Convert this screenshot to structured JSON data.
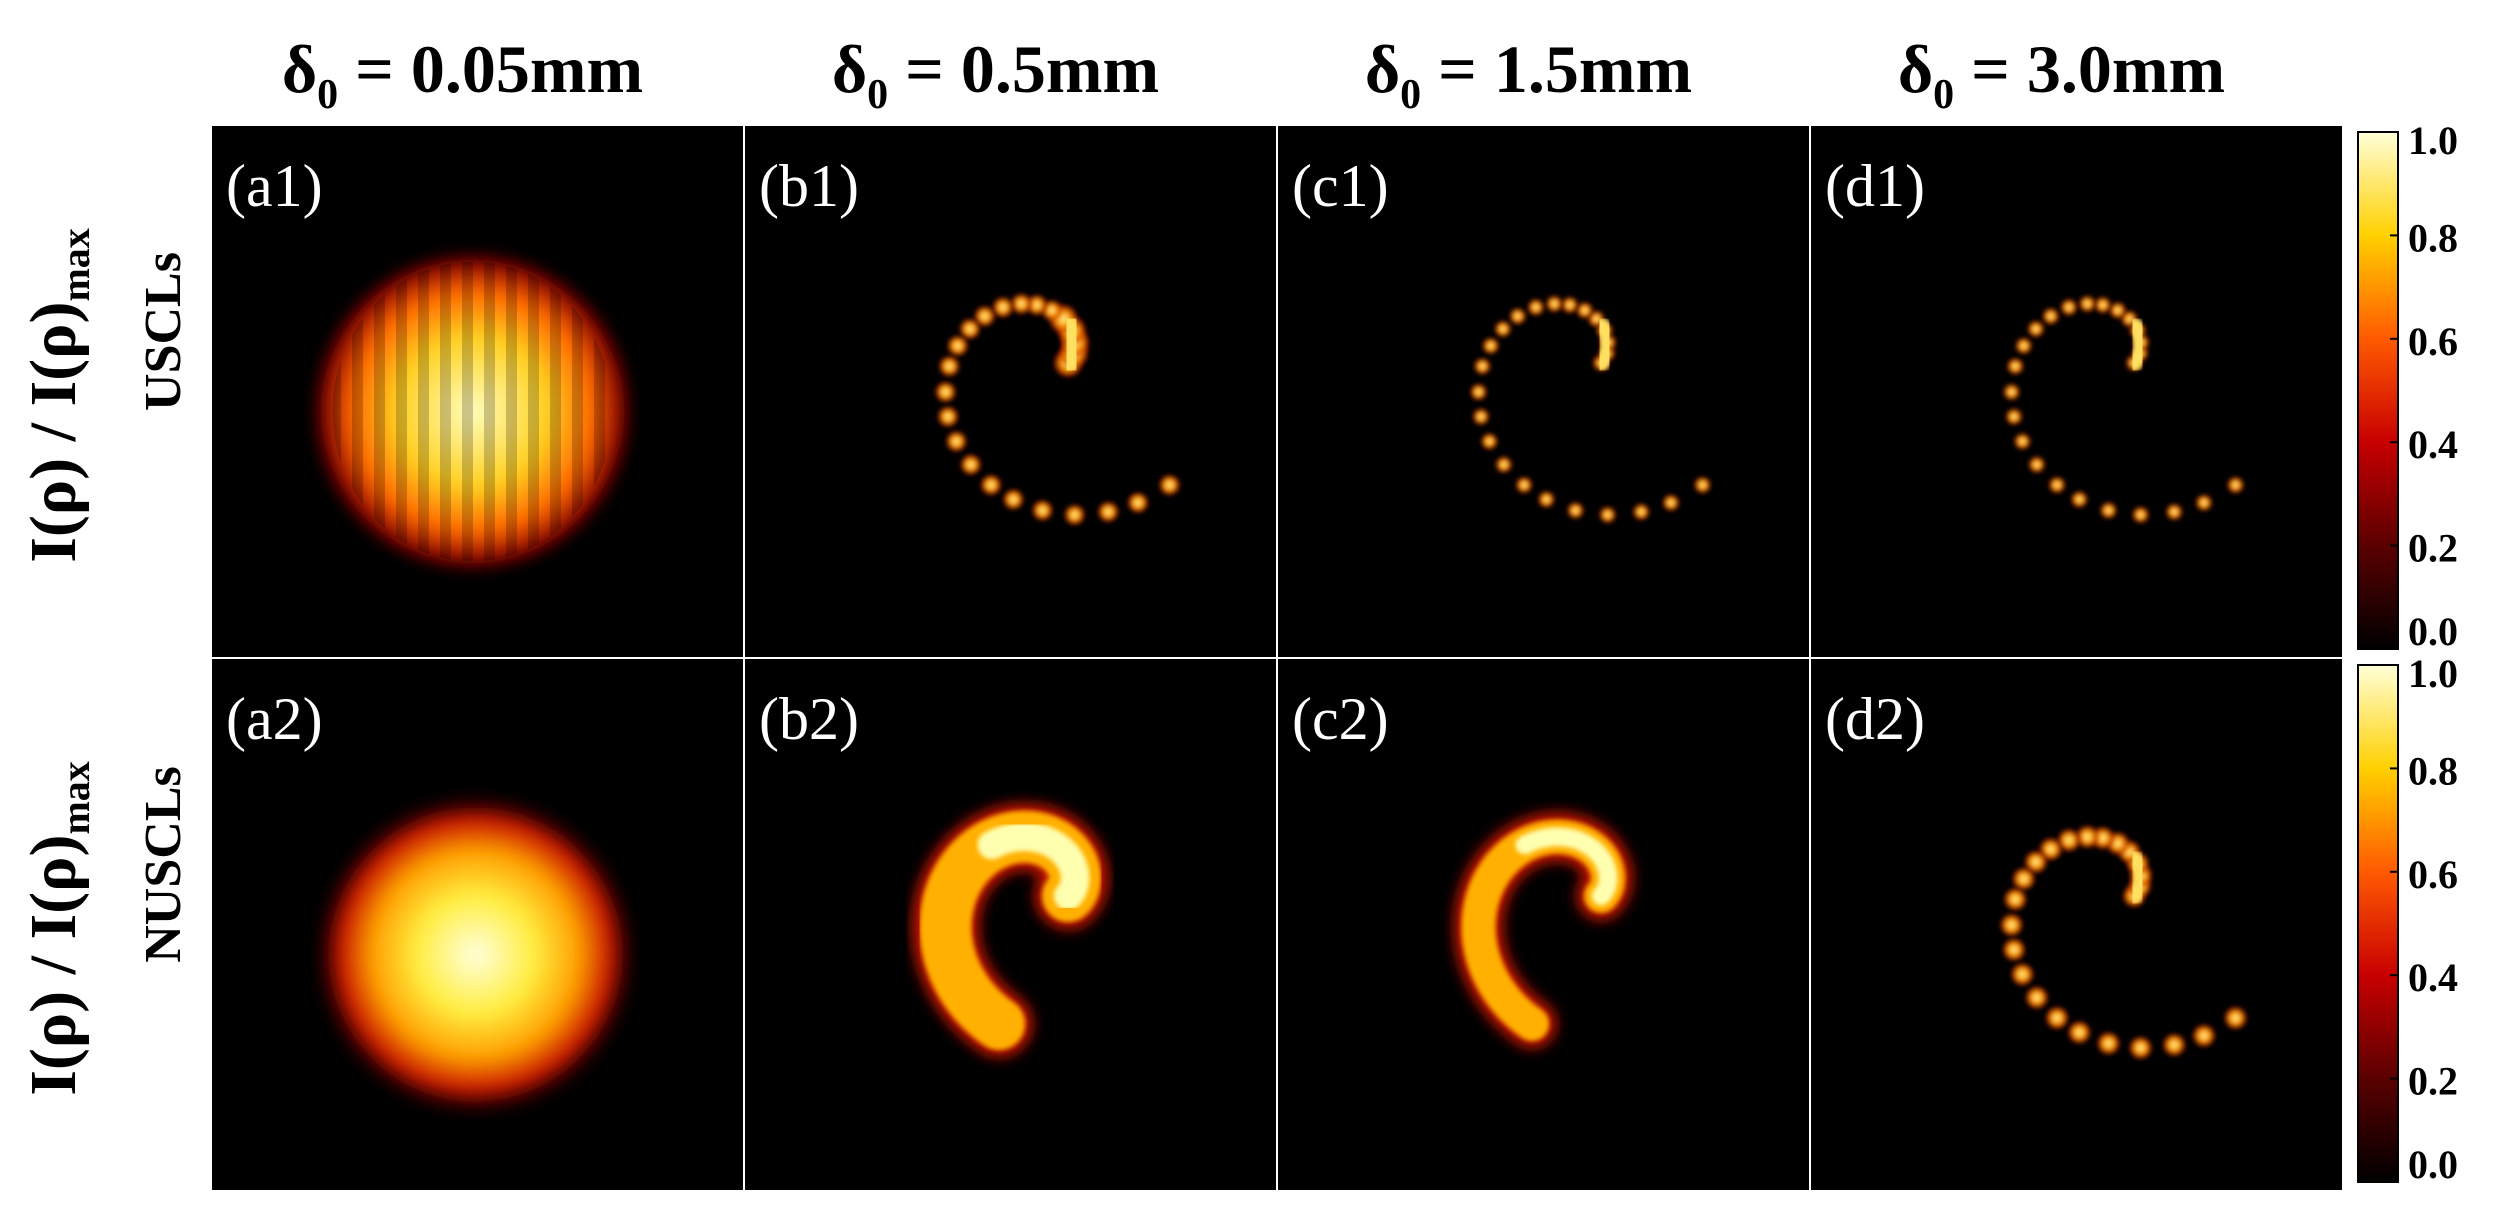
{
  "figure": {
    "columns": [
      {
        "symbol": "δ",
        "sub": "0",
        "value": " = 0.05mm"
      },
      {
        "symbol": "δ",
        "sub": "0",
        "value": " = 0.5mm"
      },
      {
        "symbol": "δ",
        "sub": "0",
        "value": " = 1.5mm"
      },
      {
        "symbol": "δ",
        "sub": "0",
        "value": " = 3.0mm"
      }
    ],
    "rows": [
      {
        "quantity": "I(ρ) / I(ρ)",
        "sub": "max",
        "name": "USCLs",
        "colorbar_max": 1.0
      },
      {
        "quantity": "I(ρ) / I(ρ)",
        "sub": "max",
        "name": "NUSCLs",
        "colorbar_max": 1.0
      }
    ],
    "panels": [
      {
        "label": "(a1)",
        "pattern": "noisy-blob"
      },
      {
        "label": "(b1)",
        "pattern": "dot-spiral"
      },
      {
        "label": "(c1)",
        "pattern": "dot-spiral"
      },
      {
        "label": "(d1)",
        "pattern": "dot-spiral"
      },
      {
        "label": "(a2)",
        "pattern": "smooth-blob"
      },
      {
        "label": "(b2)",
        "pattern": "thick-spiral"
      },
      {
        "label": "(c2)",
        "pattern": "thin-spiral"
      },
      {
        "label": "(d2)",
        "pattern": "dot-spiral"
      }
    ],
    "colorbar": {
      "ticks": [
        "1.0",
        "0.8",
        "0.6",
        "0.4",
        "0.2",
        "0.0"
      ],
      "colormap": [
        "#000000",
        "#5a0000",
        "#c80000",
        "#ff5a00",
        "#ffd000",
        "#ffffd8"
      ]
    }
  }
}
